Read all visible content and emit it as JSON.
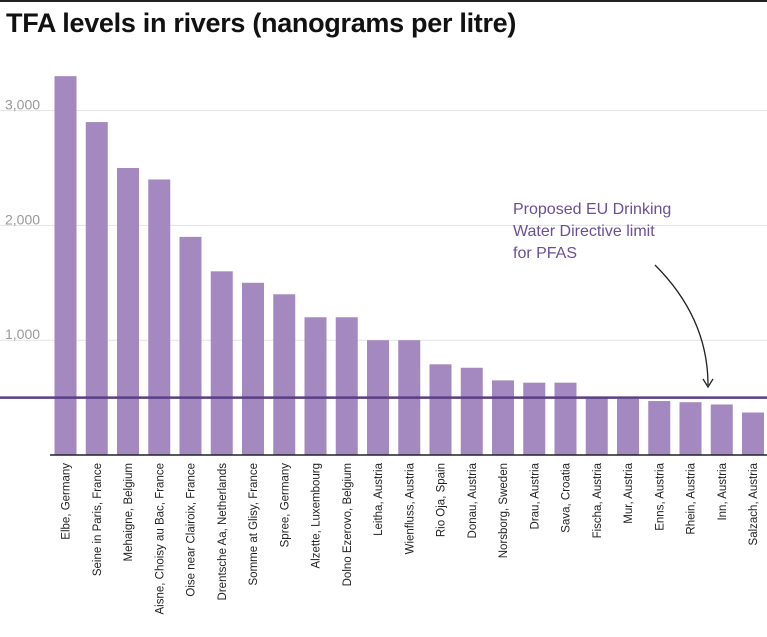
{
  "title": "TFA levels in rivers (nanograms per litre)",
  "colors": {
    "bar": "#a389c0",
    "threshold_line": "#5a3f85",
    "annotation_text": "#6b4f96",
    "gridline": "#e3e3e3",
    "tick_label": "#999999"
  },
  "chart_data": {
    "type": "bar",
    "title": "TFA levels in rivers (nanograms per litre)",
    "xlabel": "",
    "ylabel": "",
    "ylim": [
      0,
      3400
    ],
    "yticks": [
      1000,
      2000,
      3000
    ],
    "ytick_labels": [
      "1,000",
      "2,000",
      "3,000"
    ],
    "grid": true,
    "categories": [
      "Elbe, Germany",
      "Seine in Paris, France",
      "Mehaigne, Belgium",
      "Aisne, Choisy au Bac, France",
      "Oise near Clairoix, France",
      "Drentsche Aa, Netherlands",
      "Somme at Glisy, France",
      "Spree, Germany",
      "Alzette, Luxembourg",
      "Dolno Ezerovo, Belgium",
      "Leitha, Austria",
      "Wienfluss, Austria",
      "Rio Oja, Spain",
      "Donau, Austria",
      "Norsborg, Sweden",
      "Drau, Austria",
      "Sava, Croatia",
      "Fischa, Austria",
      "Mur, Austria",
      "Enns, Austria",
      "Rhein, Austria",
      "Inn, Austria",
      "Salzach, Austria"
    ],
    "values": [
      3300,
      2900,
      2500,
      2400,
      1900,
      1600,
      1500,
      1400,
      1200,
      1200,
      1000,
      1000,
      790,
      760,
      650,
      630,
      630,
      500,
      490,
      470,
      460,
      440,
      370
    ],
    "reference_line": {
      "value": 500,
      "label": "Proposed EU Drinking Water Directive limit for PFAS"
    },
    "annotation_lines": [
      "Proposed EU Drinking",
      "Water Directive limit",
      "for PFAS"
    ]
  }
}
